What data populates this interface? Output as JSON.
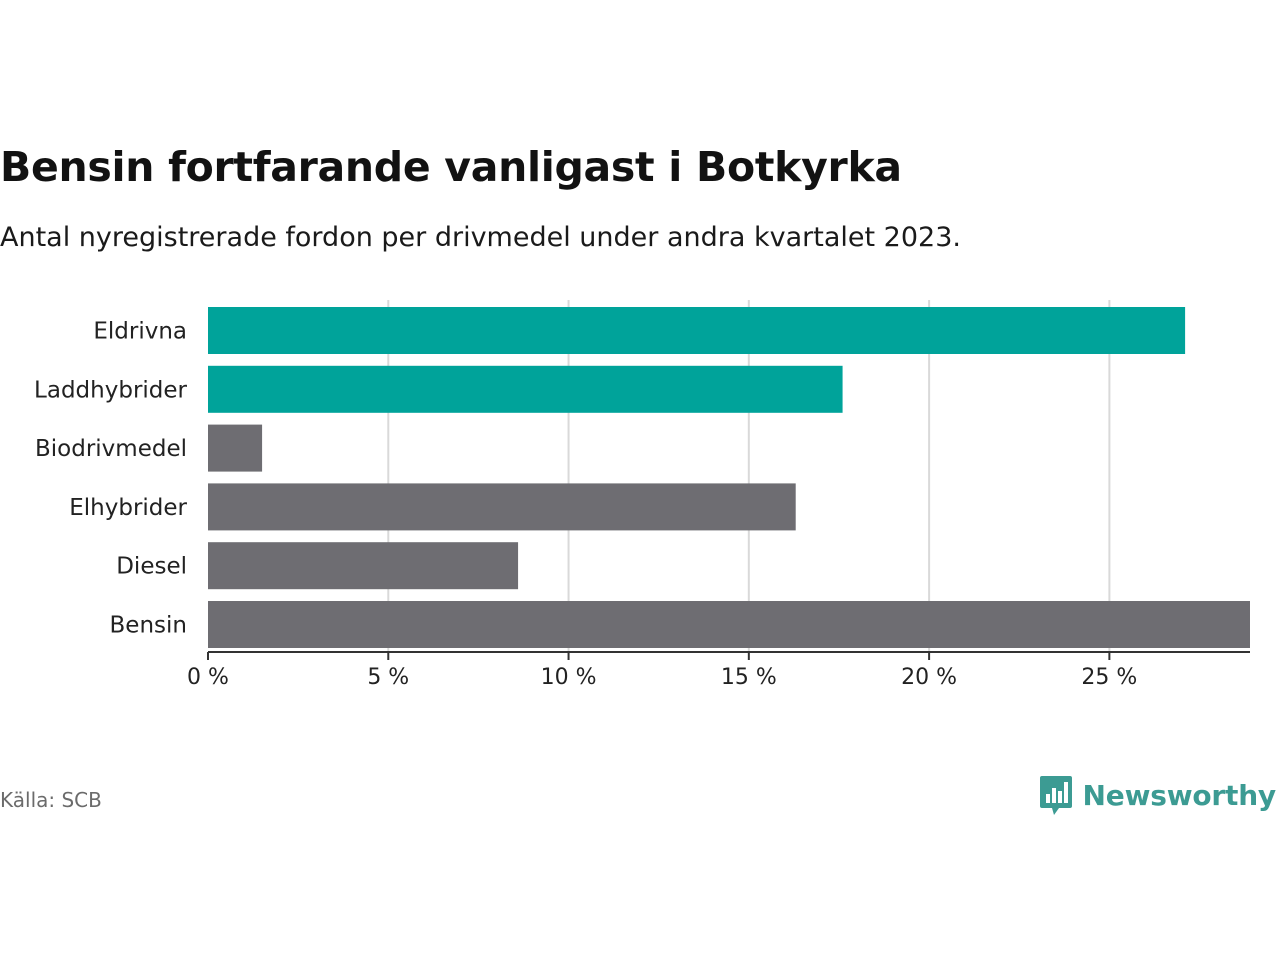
{
  "header": {
    "title": "Bensin fortfarande vanligast i Botkyrka",
    "subtitle": "Antal nyregistrerade fordon per drivmedel under andra kvartalet 2023."
  },
  "footer": {
    "source": "Källa: SCB",
    "brand": "Newsworthy",
    "brand_icon": "chart-bubble-icon"
  },
  "colors": {
    "highlight": "#00a39a",
    "default": "#6e6d72",
    "grid": "#d9d9d9",
    "axis": "#333333",
    "brand": "#3c9b93"
  },
  "chart_data": {
    "type": "bar",
    "orientation": "horizontal",
    "title": "Bensin fortfarande vanligast i Botkyrka",
    "subtitle": "Antal nyregistrerade fordon per drivmedel under andra kvartalet 2023.",
    "xlabel": "",
    "ylabel": "",
    "unit": "%",
    "xlim": [
      0,
      28.9
    ],
    "ticks": [
      0,
      5,
      10,
      15,
      20,
      25
    ],
    "tick_labels": [
      "0 %",
      "5 %",
      "10 %",
      "15 %",
      "20 %",
      "25 %"
    ],
    "grid": true,
    "categories": [
      "Eldrivna",
      "Laddhybrider",
      "Biodrivmedel",
      "Elhybrider",
      "Diesel",
      "Bensin"
    ],
    "values": [
      27.1,
      17.6,
      1.5,
      16.3,
      8.6,
      28.9
    ],
    "highlighted": [
      true,
      true,
      false,
      false,
      false,
      false
    ]
  }
}
